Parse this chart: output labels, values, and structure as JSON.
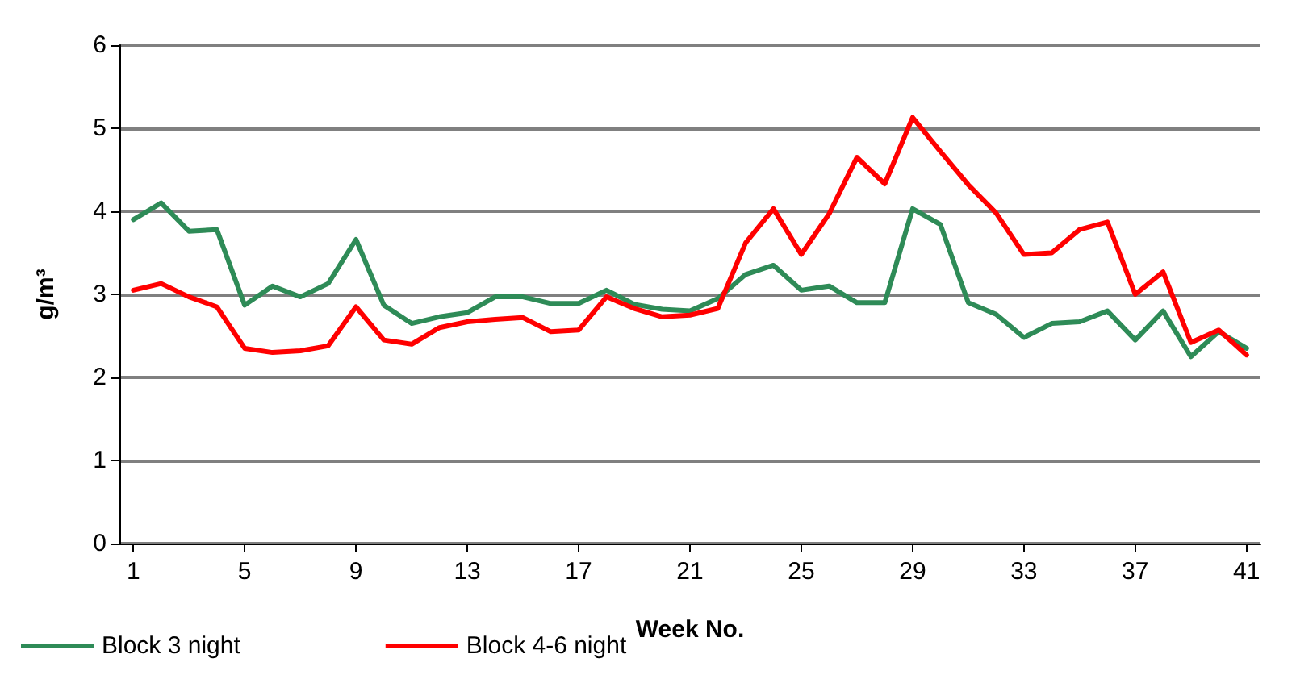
{
  "chart_data": {
    "type": "line",
    "xlabel": "Week No.",
    "ylabel": "g/m³",
    "x": [
      1,
      2,
      3,
      4,
      5,
      6,
      7,
      8,
      9,
      10,
      11,
      12,
      13,
      14,
      15,
      16,
      17,
      18,
      19,
      20,
      21,
      22,
      23,
      24,
      25,
      26,
      27,
      28,
      29,
      30,
      31,
      32,
      33,
      34,
      35,
      36,
      37,
      38,
      39,
      40,
      41
    ],
    "xlim": [
      0.5,
      41.5
    ],
    "xticks": [
      1,
      5,
      9,
      13,
      17,
      21,
      25,
      29,
      33,
      37,
      41
    ],
    "ylim": [
      0,
      6
    ],
    "yticks": [
      0,
      1,
      2,
      3,
      4,
      5,
      6
    ],
    "grid": "y",
    "legend": "bottom left",
    "marker": "none",
    "line_style": "solid",
    "series": [
      {
        "name": "Block 3 night",
        "color": "#2e8b57",
        "values": [
          3.9,
          4.1,
          3.76,
          3.78,
          2.87,
          3.1,
          2.97,
          3.13,
          3.66,
          2.87,
          2.65,
          2.73,
          2.78,
          2.97,
          2.97,
          2.89,
          2.89,
          3.05,
          2.88,
          2.82,
          2.8,
          2.95,
          3.24,
          3.35,
          3.05,
          3.1,
          2.9,
          2.9,
          4.03,
          3.84,
          2.9,
          2.76,
          2.48,
          2.65,
          2.67,
          2.8,
          2.45,
          2.8,
          2.25,
          2.55,
          2.35
        ]
      },
      {
        "name": "Block 4-6 night",
        "color": "#ff0000",
        "values": [
          3.05,
          3.13,
          2.97,
          2.85,
          2.35,
          2.3,
          2.32,
          2.38,
          2.85,
          2.45,
          2.4,
          2.6,
          2.67,
          2.7,
          2.72,
          2.55,
          2.57,
          2.97,
          2.83,
          2.73,
          2.75,
          2.83,
          3.62,
          4.03,
          3.48,
          3.97,
          4.65,
          4.33,
          5.13,
          4.72,
          4.32,
          3.98,
          3.48,
          3.5,
          3.78,
          3.87,
          3.0,
          3.27,
          2.42,
          2.57,
          2.27
        ]
      }
    ]
  }
}
